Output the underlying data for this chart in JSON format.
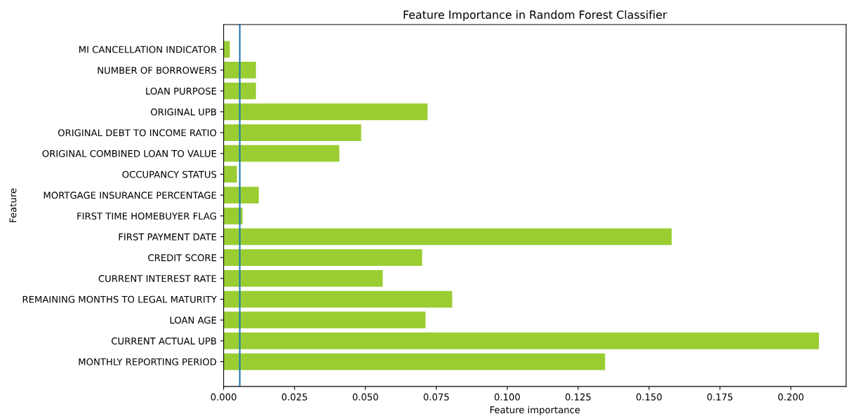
{
  "chart_data": {
    "type": "bar",
    "orientation": "horizontal",
    "title": "Feature Importance in Random Forest Classifier",
    "xlabel": "Feature importance",
    "ylabel": "Feature",
    "categories": [
      "MI CANCELLATION INDICATOR",
      "NUMBER OF BORROWERS",
      "LOAN PURPOSE",
      "ORIGINAL UPB",
      "ORIGINAL DEBT TO INCOME RATIO",
      "ORIGINAL COMBINED LOAN TO VALUE",
      "OCCUPANCY STATUS",
      "MORTGAGE INSURANCE PERCENTAGE",
      "FIRST TIME HOMEBUYER FLAG",
      "FIRST PAYMENT DATE",
      "CREDIT SCORE",
      "CURRENT INTEREST RATE",
      "REMAINING MONTHS TO LEGAL MATURITY",
      "LOAN AGE",
      "CURRENT ACTUAL UPB",
      "MONTHLY REPORTING PERIOD"
    ],
    "values": [
      0.0022,
      0.0114,
      0.0114,
      0.0719,
      0.0485,
      0.0408,
      0.0047,
      0.0124,
      0.0067,
      0.158,
      0.07,
      0.0561,
      0.0806,
      0.0712,
      0.2099,
      0.1345
    ],
    "color": "#9acd32",
    "xlim": [
      0,
      0.2195
    ],
    "xticks": [
      {
        "value": 0,
        "label": "0.000"
      },
      {
        "value": 0.025,
        "label": "0.025"
      },
      {
        "value": 0.05,
        "label": "0.050"
      },
      {
        "value": 0.075,
        "label": "0.075"
      },
      {
        "value": 0.1,
        "label": "0.100"
      },
      {
        "value": 0.125,
        "label": "0.125"
      },
      {
        "value": 0.15,
        "label": "0.150"
      },
      {
        "value": 0.175,
        "label": "0.175"
      },
      {
        "value": 0.2,
        "label": "0.200"
      }
    ],
    "ref_lines": [
      {
        "axis": "x",
        "value": 0.0057,
        "color": "#1f77b4"
      }
    ]
  }
}
